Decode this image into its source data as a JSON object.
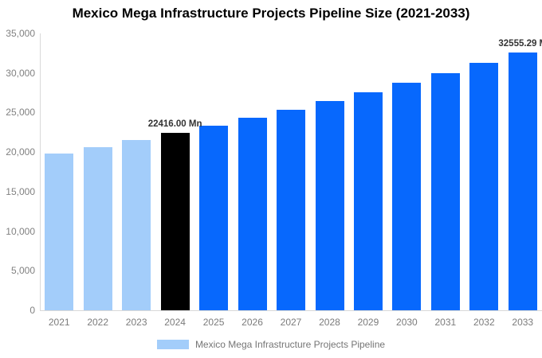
{
  "title": "Mexico Mega Infrastructure Projects Pipeline Size (2021-2033)",
  "legend": {
    "label": "Mexico Mega Infrastructure Projects Pipeline"
  },
  "colors": {
    "past": "#A3CDFA",
    "current": "#000000",
    "forecast": "#0768FD",
    "axis_line": "#D9D9D9",
    "tick_text": "#808080",
    "annotation_text": "#333333"
  },
  "chart_data": {
    "type": "bar",
    "title": "Mexico Mega Infrastructure Projects Pipeline Size (2021-2033)",
    "categories": [
      "2021",
      "2022",
      "2023",
      "2024",
      "2025",
      "2026",
      "2027",
      "2028",
      "2029",
      "2030",
      "2031",
      "2032",
      "2033"
    ],
    "values": [
      19794,
      20632,
      21505,
      22416,
      23365,
      24355,
      25386,
      26461,
      27582,
      28750,
      29967,
      31236,
      32555.29
    ],
    "bar_roles": [
      "past",
      "past",
      "past",
      "current",
      "forecast",
      "forecast",
      "forecast",
      "forecast",
      "forecast",
      "forecast",
      "forecast",
      "forecast",
      "forecast"
    ],
    "annotations": [
      {
        "index": 3,
        "text": "22416.00 Mn"
      },
      {
        "index": 12,
        "text": "32555.29 M"
      }
    ],
    "y_ticks": [
      "35,000",
      "30,000",
      "25,000",
      "20,000",
      "15,000",
      "10,000",
      "5,000",
      "0"
    ],
    "ylim": [
      0,
      35000
    ],
    "xlabel": "",
    "ylabel": "",
    "grid": false,
    "legend_position": "bottom"
  }
}
